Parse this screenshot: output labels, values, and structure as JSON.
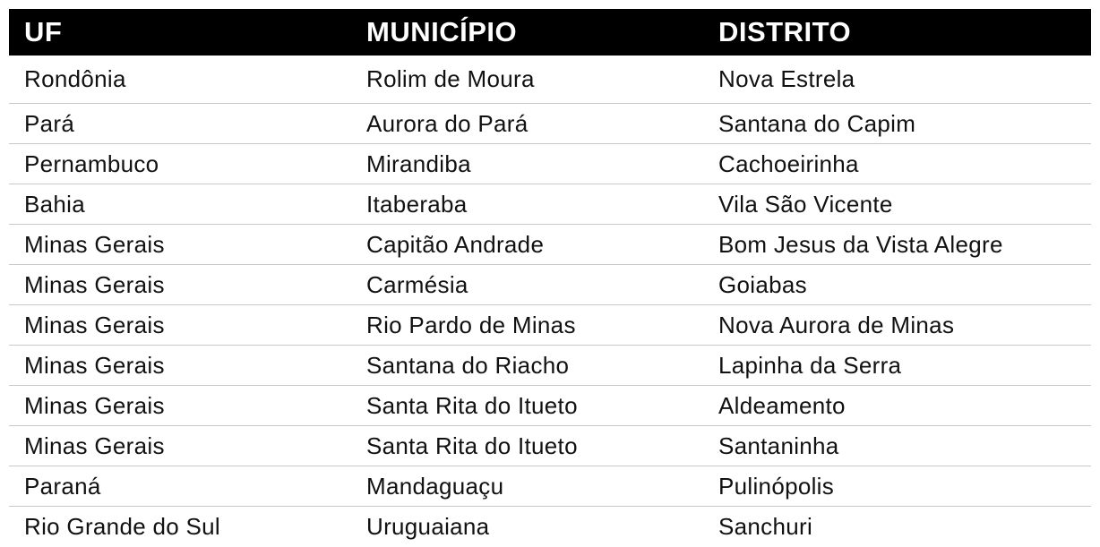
{
  "table": {
    "headers": [
      "UF",
      "MUNICÍPIO",
      "DISTRITO"
    ],
    "rows": [
      [
        "Rondônia",
        "Rolim de Moura",
        "Nova Estrela"
      ],
      [
        "Pará",
        "Aurora do Pará",
        "Santana do Capim"
      ],
      [
        "Pernambuco",
        "Mirandiba",
        "Cachoeirinha"
      ],
      [
        "Bahia",
        "Itaberaba",
        "Vila São Vicente"
      ],
      [
        "Minas Gerais",
        "Capitão Andrade",
        "Bom Jesus da Vista Alegre"
      ],
      [
        "Minas Gerais",
        "Carmésia",
        "Goiabas"
      ],
      [
        "Minas Gerais",
        "Rio Pardo de Minas",
        "Nova Aurora de Minas"
      ],
      [
        "Minas Gerais",
        "Santana do Riacho",
        "Lapinha da Serra"
      ],
      [
        "Minas Gerais",
        "Santa Rita do Itueto",
        "Aldeamento"
      ],
      [
        "Minas Gerais",
        "Santa Rita do Itueto",
        "Santaninha"
      ],
      [
        "Paraná",
        "Mandaguaçu",
        "Pulinópolis"
      ],
      [
        "Rio Grande do Sul",
        "Uruguaiana",
        "Sanchuri"
      ]
    ]
  }
}
